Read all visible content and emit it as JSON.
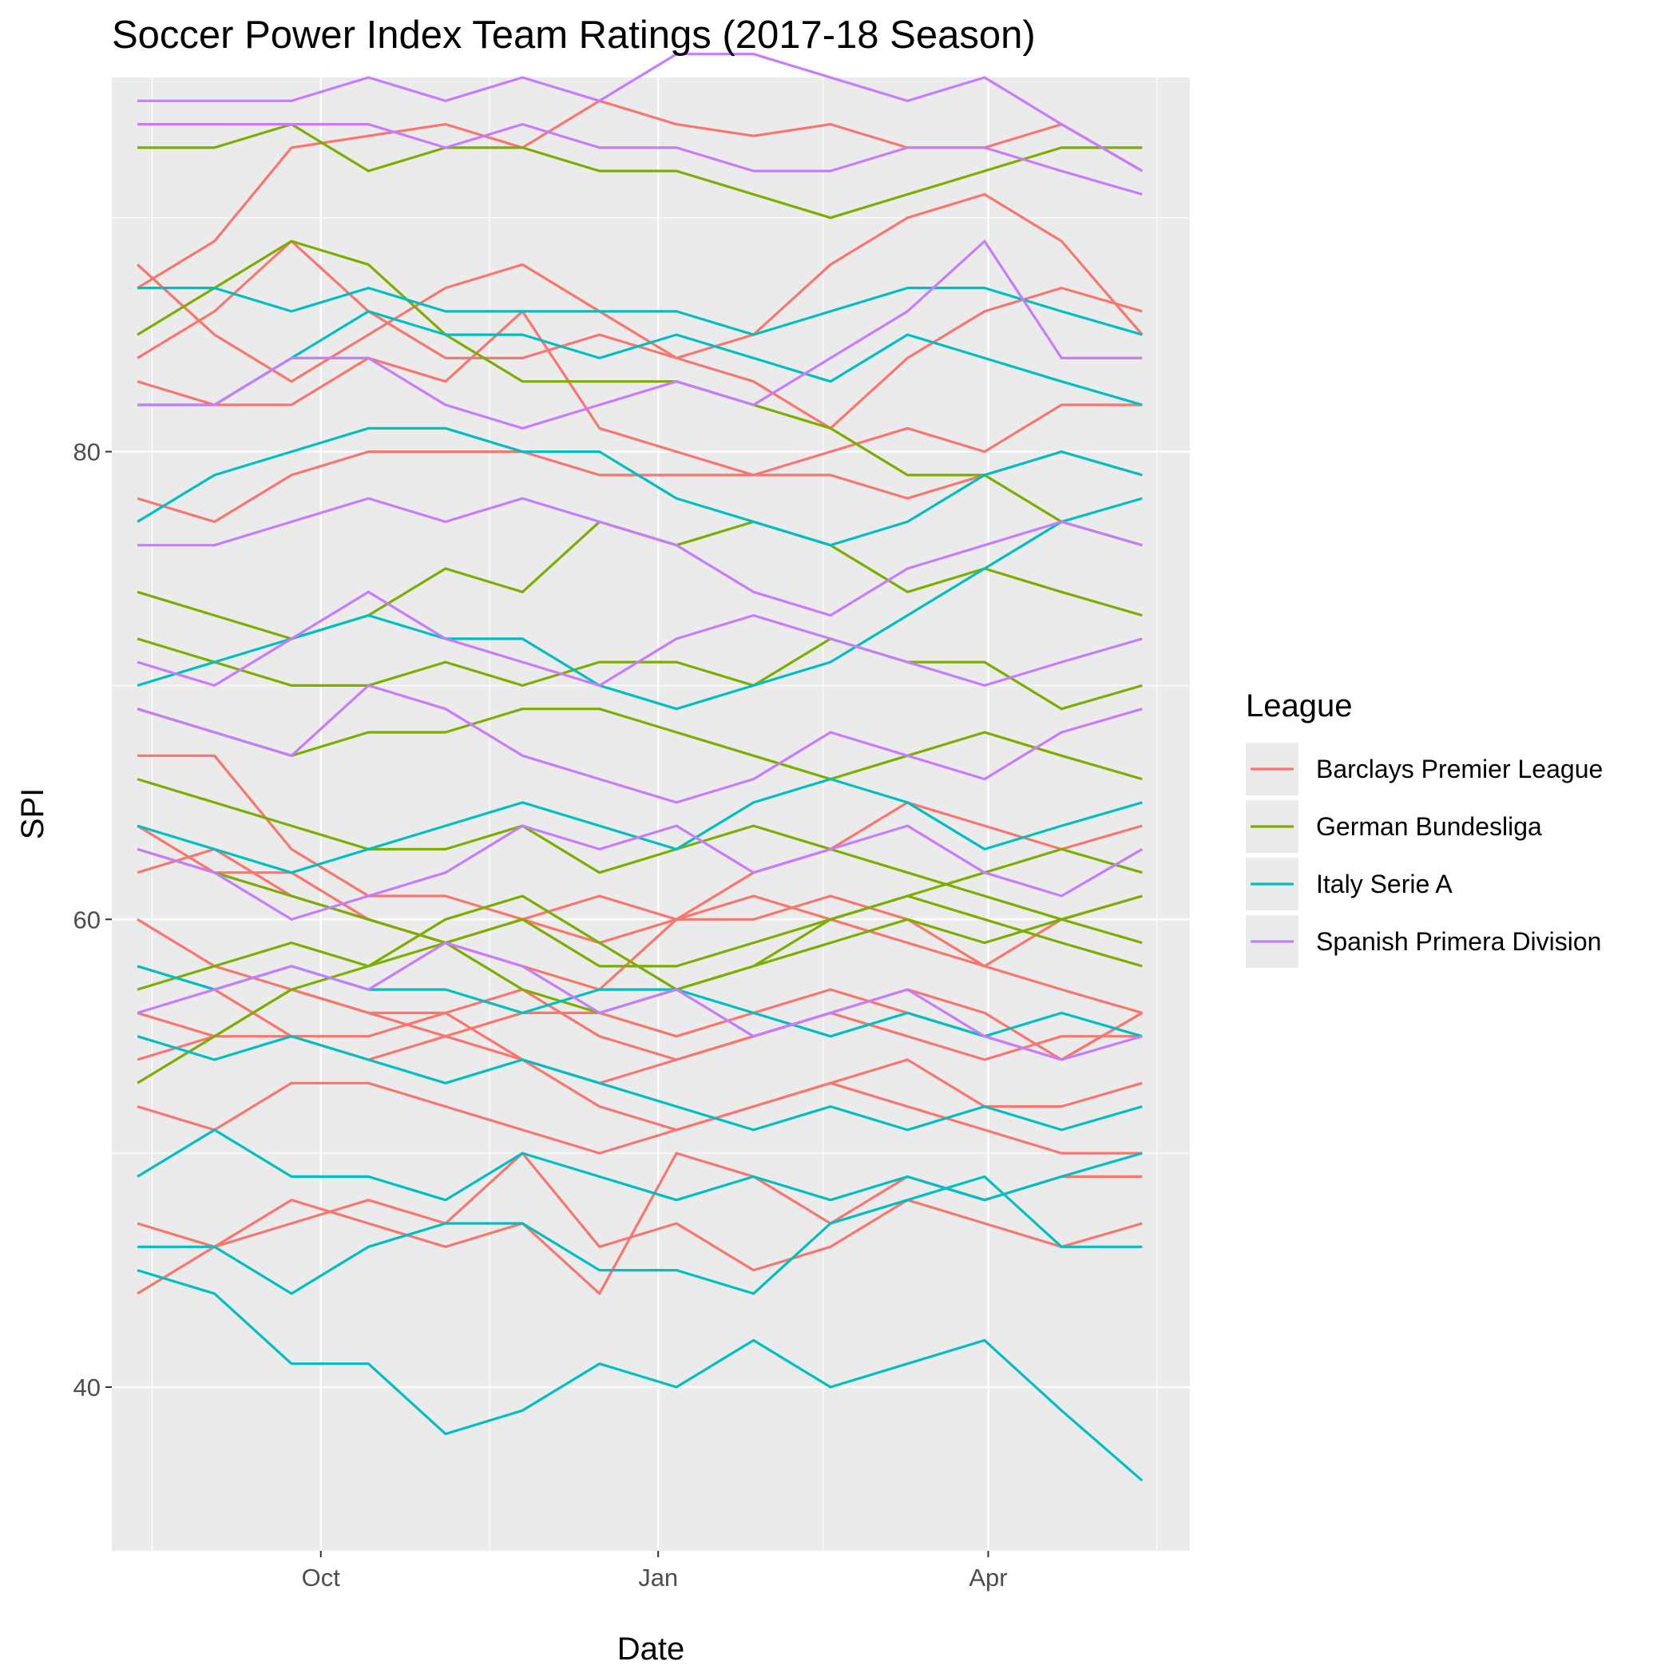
{
  "chart_data": {
    "type": "line",
    "title": "Soccer Power Index Team Ratings (2017-18 Season)",
    "xlabel": "Date",
    "ylabel": "SPI",
    "x_axis": {
      "type": "date",
      "range": [
        "2017-08-05",
        "2018-05-26"
      ],
      "tick_labels": [
        "Oct",
        "Jan",
        "Apr"
      ],
      "ticks": [
        "2017-10-01",
        "2018-01-01",
        "2018-04-01"
      ]
    },
    "y_axis": {
      "range": [
        33,
        96
      ],
      "ticks": [
        40,
        60,
        80
      ]
    },
    "grid": true,
    "legend": {
      "title": "League",
      "position": "right",
      "entries": [
        "Barclays Premier League",
        "German Bundesliga",
        "Italy Serie A",
        "Spanish Primera Division"
      ]
    },
    "colors": {
      "Barclays Premier League": "#F8766D",
      "German Bundesliga": "#7CAE00",
      "Italy Serie A": "#00BFC4",
      "Spanish Primera Division": "#C77CFF"
    },
    "x": [
      "2017-08-12",
      "2017-09-02",
      "2017-09-23",
      "2017-10-14",
      "2017-11-04",
      "2017-11-25",
      "2017-12-16",
      "2018-01-06",
      "2018-01-27",
      "2018-02-17",
      "2018-03-10",
      "2018-03-31",
      "2018-04-21",
      "2018-05-13"
    ],
    "series": [
      {
        "league": "Barclays Premier League",
        "values": [
          88,
          85,
          83,
          85,
          87,
          88,
          86,
          84,
          83,
          81,
          84,
          86,
          87,
          86
        ]
      },
      {
        "league": "Barclays Premier League",
        "values": [
          87,
          89,
          93,
          93.5,
          94,
          93,
          95,
          94,
          93.5,
          94,
          93,
          93,
          94,
          92
        ]
      },
      {
        "league": "Barclays Premier League",
        "values": [
          84,
          86,
          89,
          86,
          84,
          84,
          85,
          84,
          85,
          88,
          90,
          91,
          89,
          85
        ]
      },
      {
        "league": "Barclays Premier League",
        "values": [
          83,
          82,
          82,
          84,
          83,
          86,
          81,
          80,
          79,
          80,
          81,
          80,
          82,
          82
        ]
      },
      {
        "league": "Barclays Premier League",
        "values": [
          78,
          77,
          79,
          80,
          80,
          80,
          79,
          79,
          79,
          79,
          78,
          79,
          80,
          79
        ]
      },
      {
        "league": "Barclays Premier League",
        "values": [
          67,
          67,
          63,
          61,
          61,
          60,
          59,
          60,
          60,
          61,
          60,
          58,
          57,
          56
        ]
      },
      {
        "league": "Barclays Premier League",
        "values": [
          64,
          62,
          62,
          60,
          59,
          60,
          61,
          60,
          62,
          63,
          65,
          64,
          63,
          64
        ]
      },
      {
        "league": "Barclays Premier League",
        "values": [
          62,
          63,
          61,
          60,
          59,
          58,
          57,
          60,
          61,
          60,
          59,
          58,
          60,
          61
        ]
      },
      {
        "league": "Barclays Premier League",
        "values": [
          60,
          58,
          57,
          56,
          55,
          56,
          56,
          55,
          56,
          57,
          56,
          55,
          54,
          56
        ]
      },
      {
        "league": "Barclays Premier League",
        "values": [
          58,
          57,
          55,
          55,
          56,
          57,
          55,
          54,
          55,
          56,
          55,
          54,
          55,
          55
        ]
      },
      {
        "league": "Barclays Premier League",
        "values": [
          56,
          55,
          55,
          54,
          55,
          54,
          53,
          54,
          55,
          56,
          57,
          56,
          54,
          56
        ]
      },
      {
        "league": "Barclays Premier League",
        "values": [
          54,
          55,
          57,
          56,
          56,
          54,
          52,
          51,
          52,
          53,
          54,
          52,
          52,
          53
        ]
      },
      {
        "league": "Barclays Premier League",
        "values": [
          52,
          51,
          53,
          53,
          52,
          51,
          50,
          51,
          52,
          53,
          52,
          51,
          50,
          50
        ]
      },
      {
        "league": "Barclays Premier League",
        "values": [
          47,
          46,
          47,
          48,
          47,
          50,
          46,
          47,
          45,
          46,
          48,
          47,
          46,
          47
        ]
      },
      {
        "league": "Barclays Premier League",
        "values": [
          44,
          46,
          48,
          47,
          46,
          47,
          44,
          50,
          49,
          47,
          49,
          48,
          49,
          49
        ]
      },
      {
        "league": "German Bundesliga",
        "values": [
          93,
          93,
          94,
          92,
          93,
          93,
          92,
          92,
          91,
          90,
          91,
          92,
          93,
          93
        ]
      },
      {
        "league": "German Bundesliga",
        "values": [
          85,
          87,
          89,
          88,
          85,
          83,
          83,
          83,
          82,
          81,
          79,
          79,
          77,
          76
        ]
      },
      {
        "league": "German Bundesliga",
        "values": [
          74,
          73,
          72,
          73,
          75,
          74,
          77,
          76,
          77,
          76,
          74,
          75,
          74,
          73
        ]
      },
      {
        "league": "German Bundesliga",
        "values": [
          72,
          71,
          70,
          70,
          71,
          70,
          71,
          71,
          70,
          72,
          71,
          71,
          69,
          70
        ]
      },
      {
        "league": "German Bundesliga",
        "values": [
          69,
          68,
          67,
          68,
          68,
          69,
          69,
          68,
          67,
          66,
          67,
          68,
          67,
          66
        ]
      },
      {
        "league": "German Bundesliga",
        "values": [
          66,
          65,
          64,
          63,
          63,
          64,
          62,
          63,
          64,
          63,
          62,
          61,
          60,
          59
        ]
      },
      {
        "league": "German Bundesliga",
        "values": [
          63,
          62,
          61,
          60,
          59,
          60,
          58,
          58,
          59,
          60,
          61,
          62,
          63,
          62
        ]
      },
      {
        "league": "German Bundesliga",
        "values": [
          57,
          58,
          59,
          58,
          60,
          61,
          59,
          57,
          58,
          60,
          61,
          60,
          59,
          58
        ]
      },
      {
        "league": "German Bundesliga",
        "values": [
          53,
          55,
          57,
          58,
          59,
          57,
          56,
          57,
          58,
          59,
          60,
          59,
          60,
          61
        ]
      },
      {
        "league": "Italy Serie A",
        "values": [
          87,
          87,
          86,
          87,
          86,
          86,
          86,
          86,
          85,
          86,
          87,
          87,
          86,
          85
        ]
      },
      {
        "league": "Italy Serie A",
        "values": [
          82,
          82,
          84,
          86,
          85,
          85,
          84,
          85,
          84,
          83,
          85,
          84,
          83,
          82
        ]
      },
      {
        "league": "Italy Serie A",
        "values": [
          77,
          79,
          80,
          81,
          81,
          80,
          80,
          78,
          77,
          76,
          77,
          79,
          80,
          79
        ]
      },
      {
        "league": "Italy Serie A",
        "values": [
          70,
          71,
          72,
          73,
          72,
          72,
          70,
          69,
          70,
          71,
          73,
          75,
          77,
          78
        ]
      },
      {
        "league": "Italy Serie A",
        "values": [
          64,
          63,
          62,
          63,
          64,
          65,
          64,
          63,
          65,
          66,
          65,
          63,
          64,
          65
        ]
      },
      {
        "league": "Italy Serie A",
        "values": [
          58,
          57,
          58,
          57,
          57,
          56,
          57,
          57,
          56,
          55,
          56,
          55,
          56,
          55
        ]
      },
      {
        "league": "Italy Serie A",
        "values": [
          55,
          54,
          55,
          54,
          53,
          54,
          53,
          52,
          51,
          52,
          51,
          52,
          51,
          52
        ]
      },
      {
        "league": "Italy Serie A",
        "values": [
          49,
          51,
          49,
          49,
          48,
          50,
          49,
          48,
          49,
          48,
          49,
          48,
          49,
          50
        ]
      },
      {
        "league": "Italy Serie A",
        "values": [
          46,
          46,
          44,
          46,
          47,
          47,
          45,
          45,
          44,
          47,
          48,
          49,
          46,
          46
        ]
      },
      {
        "league": "Italy Serie A",
        "values": [
          45,
          44,
          41,
          41,
          38,
          39,
          41,
          40,
          42,
          40,
          41,
          42,
          39,
          36
        ]
      },
      {
        "league": "Spanish Primera Division",
        "values": [
          95,
          95,
          95,
          96,
          95,
          96,
          95,
          97,
          97,
          96,
          95,
          96,
          94,
          92
        ]
      },
      {
        "league": "Spanish Primera Division",
        "values": [
          94,
          94,
          94,
          94,
          93,
          94,
          93,
          93,
          92,
          92,
          93,
          93,
          92,
          91
        ]
      },
      {
        "league": "Spanish Primera Division",
        "values": [
          82,
          82,
          84,
          84,
          82,
          81,
          82,
          83,
          82,
          84,
          86,
          89,
          84,
          84
        ]
      },
      {
        "league": "Spanish Primera Division",
        "values": [
          76,
          76,
          77,
          78,
          77,
          78,
          77,
          76,
          74,
          73,
          75,
          76,
          77,
          76
        ]
      },
      {
        "league": "Spanish Primera Division",
        "values": [
          71,
          70,
          72,
          74,
          72,
          71,
          70,
          72,
          73,
          72,
          71,
          70,
          71,
          72
        ]
      },
      {
        "league": "Spanish Primera Division",
        "values": [
          69,
          68,
          67,
          70,
          69,
          67,
          66,
          65,
          66,
          68,
          67,
          66,
          68,
          69
        ]
      },
      {
        "league": "Spanish Primera Division",
        "values": [
          63,
          62,
          60,
          61,
          62,
          64,
          63,
          64,
          62,
          63,
          64,
          62,
          61,
          63
        ]
      },
      {
        "league": "Spanish Primera Division",
        "values": [
          56,
          57,
          58,
          57,
          59,
          58,
          56,
          57,
          55,
          56,
          57,
          55,
          54,
          55
        ]
      }
    ]
  }
}
